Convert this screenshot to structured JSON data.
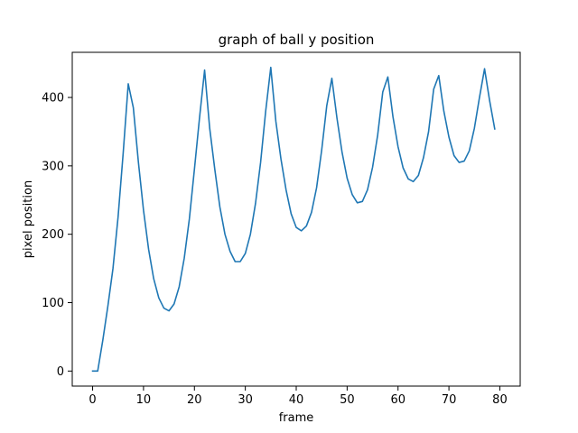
{
  "chart_data": {
    "type": "line",
    "title": "graph of ball y position",
    "xlabel": "frame",
    "ylabel": "pixel position",
    "xlim": [
      -4,
      84
    ],
    "ylim": [
      -22,
      466
    ],
    "xticks": [
      0,
      10,
      20,
      30,
      40,
      50,
      60,
      70,
      80
    ],
    "yticks": [
      0,
      100,
      200,
      300,
      400
    ],
    "grid": false,
    "color": "#1f77b4",
    "series": [
      {
        "x": [
          0,
          1,
          2,
          3,
          4,
          5,
          6,
          7,
          8,
          9,
          10,
          11,
          12,
          13,
          14,
          15,
          16,
          17,
          18,
          19,
          20,
          21,
          22,
          23,
          24,
          25,
          26,
          27,
          28,
          29,
          30,
          31,
          32,
          33,
          34,
          35,
          36,
          37,
          38,
          39,
          40,
          41,
          42,
          43,
          44,
          45,
          46,
          47,
          48,
          49,
          50,
          51,
          52,
          53,
          54,
          55,
          56,
          57,
          58,
          59,
          60,
          61,
          62,
          63,
          64,
          65,
          66,
          67,
          68,
          69,
          70,
          71,
          72,
          73,
          74,
          75,
          76,
          77,
          78,
          79
        ],
        "y": [
          0,
          0,
          45,
          95,
          150,
          225,
          318,
          420,
          385,
          305,
          235,
          178,
          135,
          107,
          92,
          88,
          98,
          123,
          165,
          222,
          295,
          370,
          440,
          355,
          295,
          240,
          200,
          175,
          160,
          160,
          172,
          200,
          245,
          305,
          380,
          444,
          365,
          310,
          265,
          230,
          210,
          205,
          212,
          232,
          268,
          323,
          388,
          428,
          370,
          320,
          282,
          258,
          246,
          248,
          265,
          298,
          345,
          408,
          430,
          372,
          328,
          297,
          281,
          277,
          286,
          312,
          350,
          412,
          432,
          380,
          342,
          315,
          305,
          307,
          322,
          355,
          400,
          442,
          395,
          354
        ]
      }
    ]
  }
}
